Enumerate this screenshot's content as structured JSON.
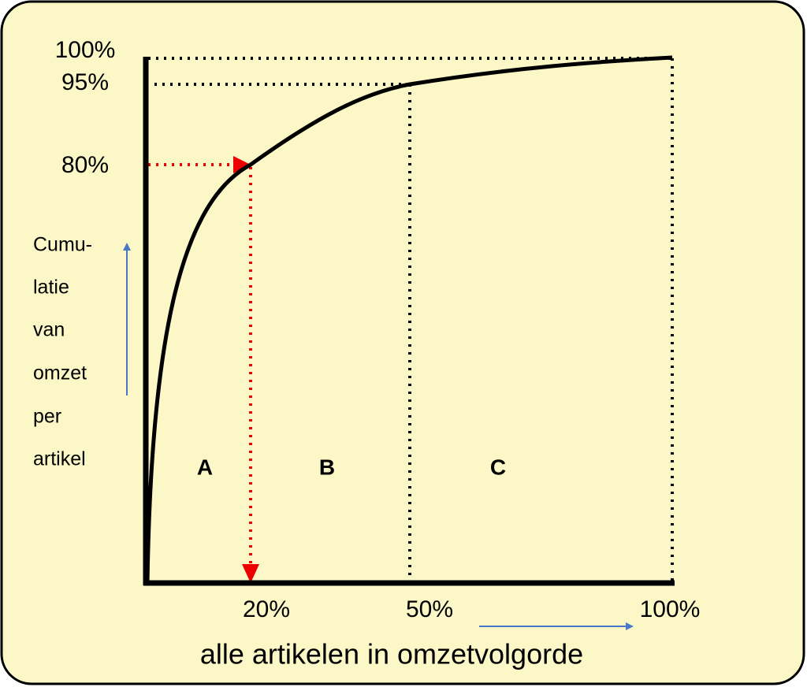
{
  "y_axis": {
    "ticks": [
      "100%",
      "95%",
      "80%"
    ],
    "title_lines": [
      "Cumu-",
      "latie",
      "van",
      "omzet",
      "per",
      "artikel"
    ]
  },
  "x_axis": {
    "ticks": [
      "20%",
      "50%",
      "100%"
    ],
    "title": "alle artikelen in omzetvolgorde"
  },
  "regions": [
    "A",
    "B",
    "C"
  ]
}
